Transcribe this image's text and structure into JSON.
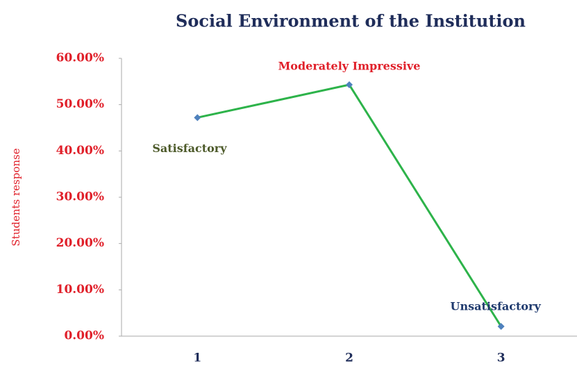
{
  "chart_data": {
    "type": "line",
    "title": "Social Environment of the Institution",
    "y_label": "Students response",
    "categories": [
      "1",
      "2",
      "3"
    ],
    "series": [
      {
        "name": "Students response",
        "color": "#2db34a",
        "marker_color": "#4f81bd",
        "values": [
          47.2,
          54.3,
          2.1
        ]
      }
    ],
    "annotations": [
      {
        "text": "Satisfactory",
        "color": "#4d5a2a"
      },
      {
        "text": "Moderately Impressive",
        "color": "#e0202a"
      },
      {
        "text": "Unsatisfactory",
        "color": "#1f3a6e"
      }
    ],
    "ylim": [
      0,
      60
    ],
    "yticks": [
      {
        "value": 0,
        "label": "0.00%"
      },
      {
        "value": 10,
        "label": "10.00%"
      },
      {
        "value": 20,
        "label": "20.00%"
      },
      {
        "value": 30,
        "label": "30.00%"
      },
      {
        "value": 40,
        "label": "40.00%"
      },
      {
        "value": 50,
        "label": "50.00%"
      },
      {
        "value": 60,
        "label": "60.00%"
      }
    ],
    "grid": false
  }
}
